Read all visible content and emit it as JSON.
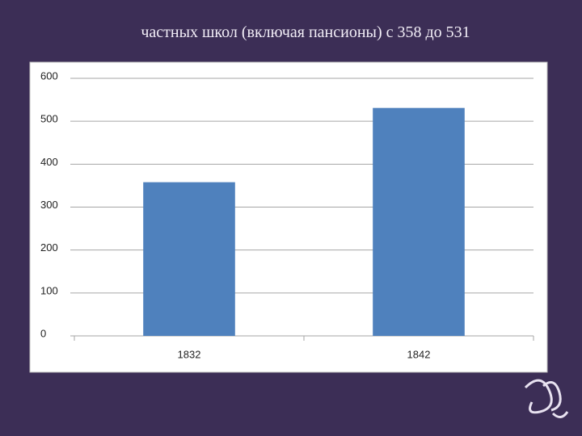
{
  "chart_data": {
    "type": "bar",
    "title": "частных школ (включая пансионы) с 358 до 531",
    "categories": [
      "1832",
      "1842"
    ],
    "values": [
      358,
      531
    ],
    "color": "#4f81bd",
    "ylim": [
      0,
      600
    ],
    "yticks": [
      0,
      100,
      200,
      300,
      400,
      500,
      600
    ],
    "grid": true
  }
}
